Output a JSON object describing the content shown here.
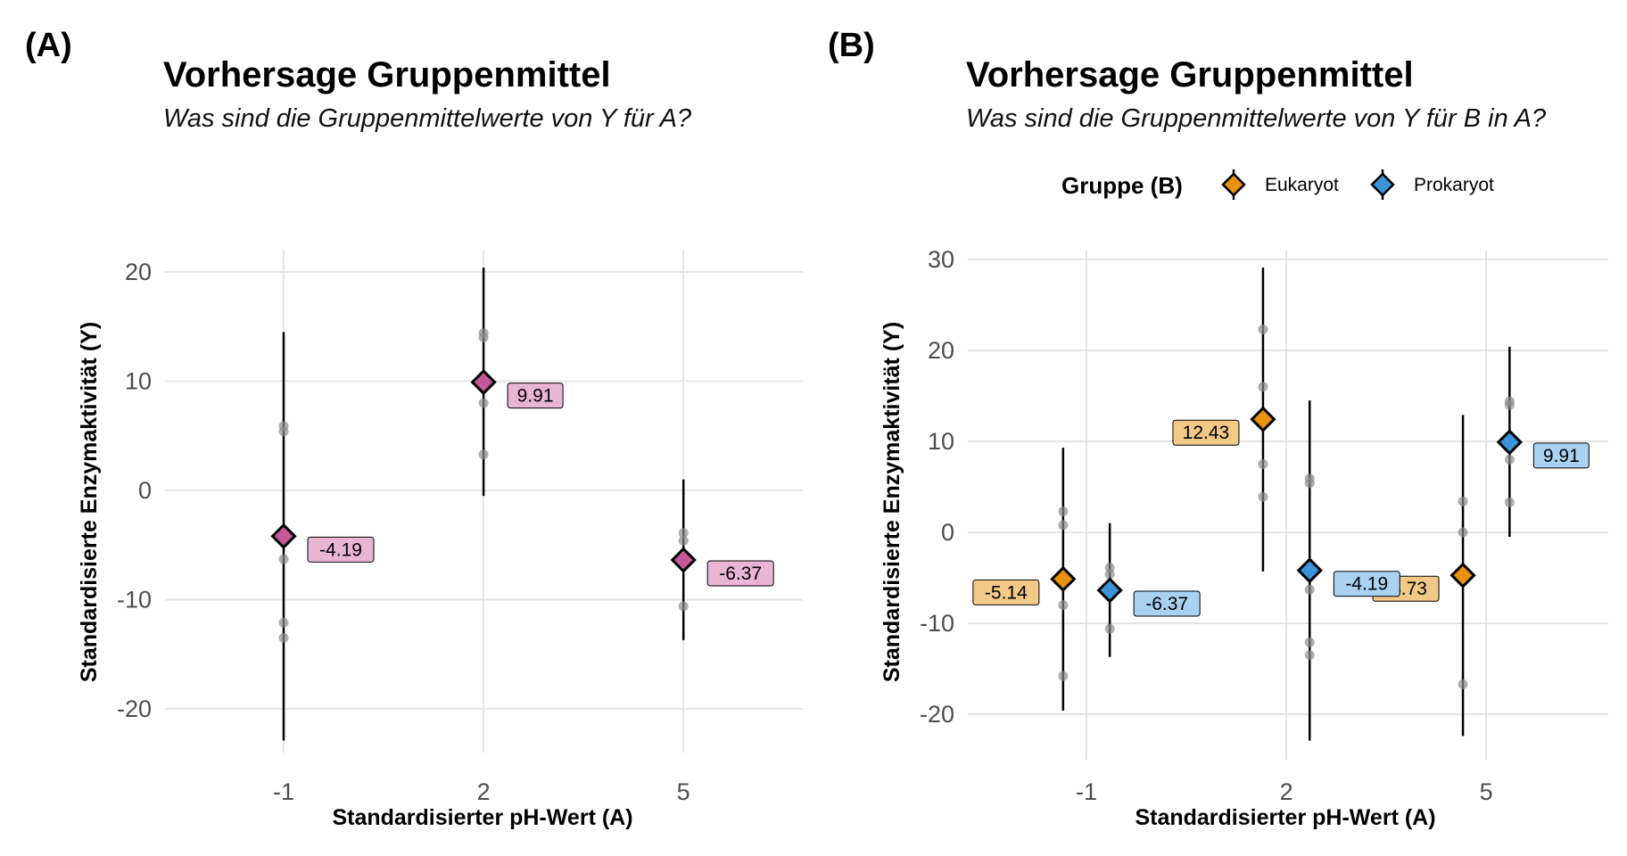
{
  "colors": {
    "grid": "#e5e5e5",
    "dot": "#8c8c8c",
    "panelA_point": "#c4589a",
    "panelA_label_bg": "#e8b5d4",
    "eukaryot": "#e8920f",
    "eukaryot_label_bg": "#f2c987",
    "prokaryot": "#3c93d8",
    "prokaryot_label_bg": "#a8d1f2"
  },
  "panels": [
    {
      "tag": "(A)",
      "title": "Vorhersage Gruppenmittel",
      "subtitle": "Was sind die Gruppenmittelwerte von Y für A?",
      "xlabel": "Standardisierter pH-Wert (A)",
      "ylabel": "Standardisierte Enzymaktivität (Y)"
    },
    {
      "tag": "(B)",
      "title": "Vorhersage Gruppenmittel",
      "subtitle": "Was sind die Gruppenmittelwerte von Y für B in A?",
      "xlabel": "Standardisierter pH-Wert (A)",
      "ylabel": "Standardisierte Enzymaktivität (Y)",
      "legend": {
        "title": "Gruppe (B)",
        "items": [
          "Eukaryot",
          "Prokaryot"
        ]
      }
    }
  ],
  "chart_data": [
    {
      "type": "scatter",
      "title": "Vorhersage Gruppenmittel",
      "subtitle": "Was sind die Gruppenmittelwerte von Y für A?",
      "xlabel": "Standardisierter pH-Wert (A)",
      "ylabel": "Standardisierte Enzymaktivität (Y)",
      "x_ticks": [
        "-1",
        "2",
        "5"
      ],
      "y_ticks": [
        "-20",
        "-10",
        "0",
        "10",
        "20"
      ],
      "xlim": [
        -3.5,
        7.5
      ],
      "ylim": [
        -24,
        22
      ],
      "grid": true,
      "groups": [
        {
          "x": -1,
          "mean": -4.19,
          "label": "-4.19",
          "ci": [
            -22.9,
            14.5
          ],
          "observations": [
            5.9,
            5.4,
            -6.3,
            -12.1,
            -13.5
          ]
        },
        {
          "x": 2,
          "mean": 9.91,
          "label": "9.91",
          "ci": [
            -0.5,
            20.4
          ],
          "observations": [
            14.4,
            14.0,
            8.0,
            3.3
          ]
        },
        {
          "x": 5,
          "mean": -6.37,
          "label": "-6.37",
          "ci": [
            -13.7,
            1.0
          ],
          "observations": [
            -3.9,
            -4.6,
            -10.6
          ]
        }
      ]
    },
    {
      "type": "scatter",
      "title": "Vorhersage Gruppenmittel",
      "subtitle": "Was sind die Gruppenmittelwerte von Y für B in A?",
      "xlabel": "Standardisierter pH-Wert (A)",
      "ylabel": "Standardisierte Enzymaktivität (Y)",
      "x_ticks": [
        "-1",
        "2",
        "5"
      ],
      "y_ticks": [
        "-20",
        "-10",
        "0",
        "10",
        "20",
        "30"
      ],
      "xlim": [
        -2.8,
        6.8
      ],
      "ylim": [
        -25,
        31
      ],
      "grid": true,
      "legend": "top",
      "series": [
        {
          "name": "Eukaryot",
          "points": [
            {
              "x": -1.35,
              "mean": -5.14,
              "label": "-5.14",
              "ci": [
                -19.6,
                9.3
              ],
              "observations": [
                2.3,
                0.8,
                -8.0,
                -15.8
              ]
            },
            {
              "x": 1.65,
              "mean": 12.43,
              "label": "12.43",
              "ci": [
                -4.3,
                29.1
              ],
              "observations": [
                22.3,
                16.0,
                7.5,
                3.9
              ]
            },
            {
              "x": 4.65,
              "mean": -4.73,
              "label": "-4.73",
              "ci": [
                -22.4,
                12.9
              ],
              "observations": [
                3.4,
                0.0,
                -16.7
              ]
            }
          ]
        },
        {
          "name": "Prokaryot",
          "points": [
            {
              "x": -0.65,
              "mean": -6.37,
              "label": "-6.37",
              "ci": [
                -13.7,
                1.0
              ],
              "observations": [
                -3.9,
                -4.6,
                -10.6
              ]
            },
            {
              "x": 2.35,
              "mean": -4.19,
              "label": "-4.19",
              "ci": [
                -22.9,
                14.5
              ],
              "observations": [
                5.9,
                5.4,
                -6.3,
                -12.1,
                -13.5
              ]
            },
            {
              "x": 5.35,
              "mean": 9.91,
              "label": "9.91",
              "ci": [
                -0.5,
                20.4
              ],
              "observations": [
                14.4,
                14.0,
                8.0,
                3.3
              ]
            }
          ]
        }
      ]
    }
  ]
}
